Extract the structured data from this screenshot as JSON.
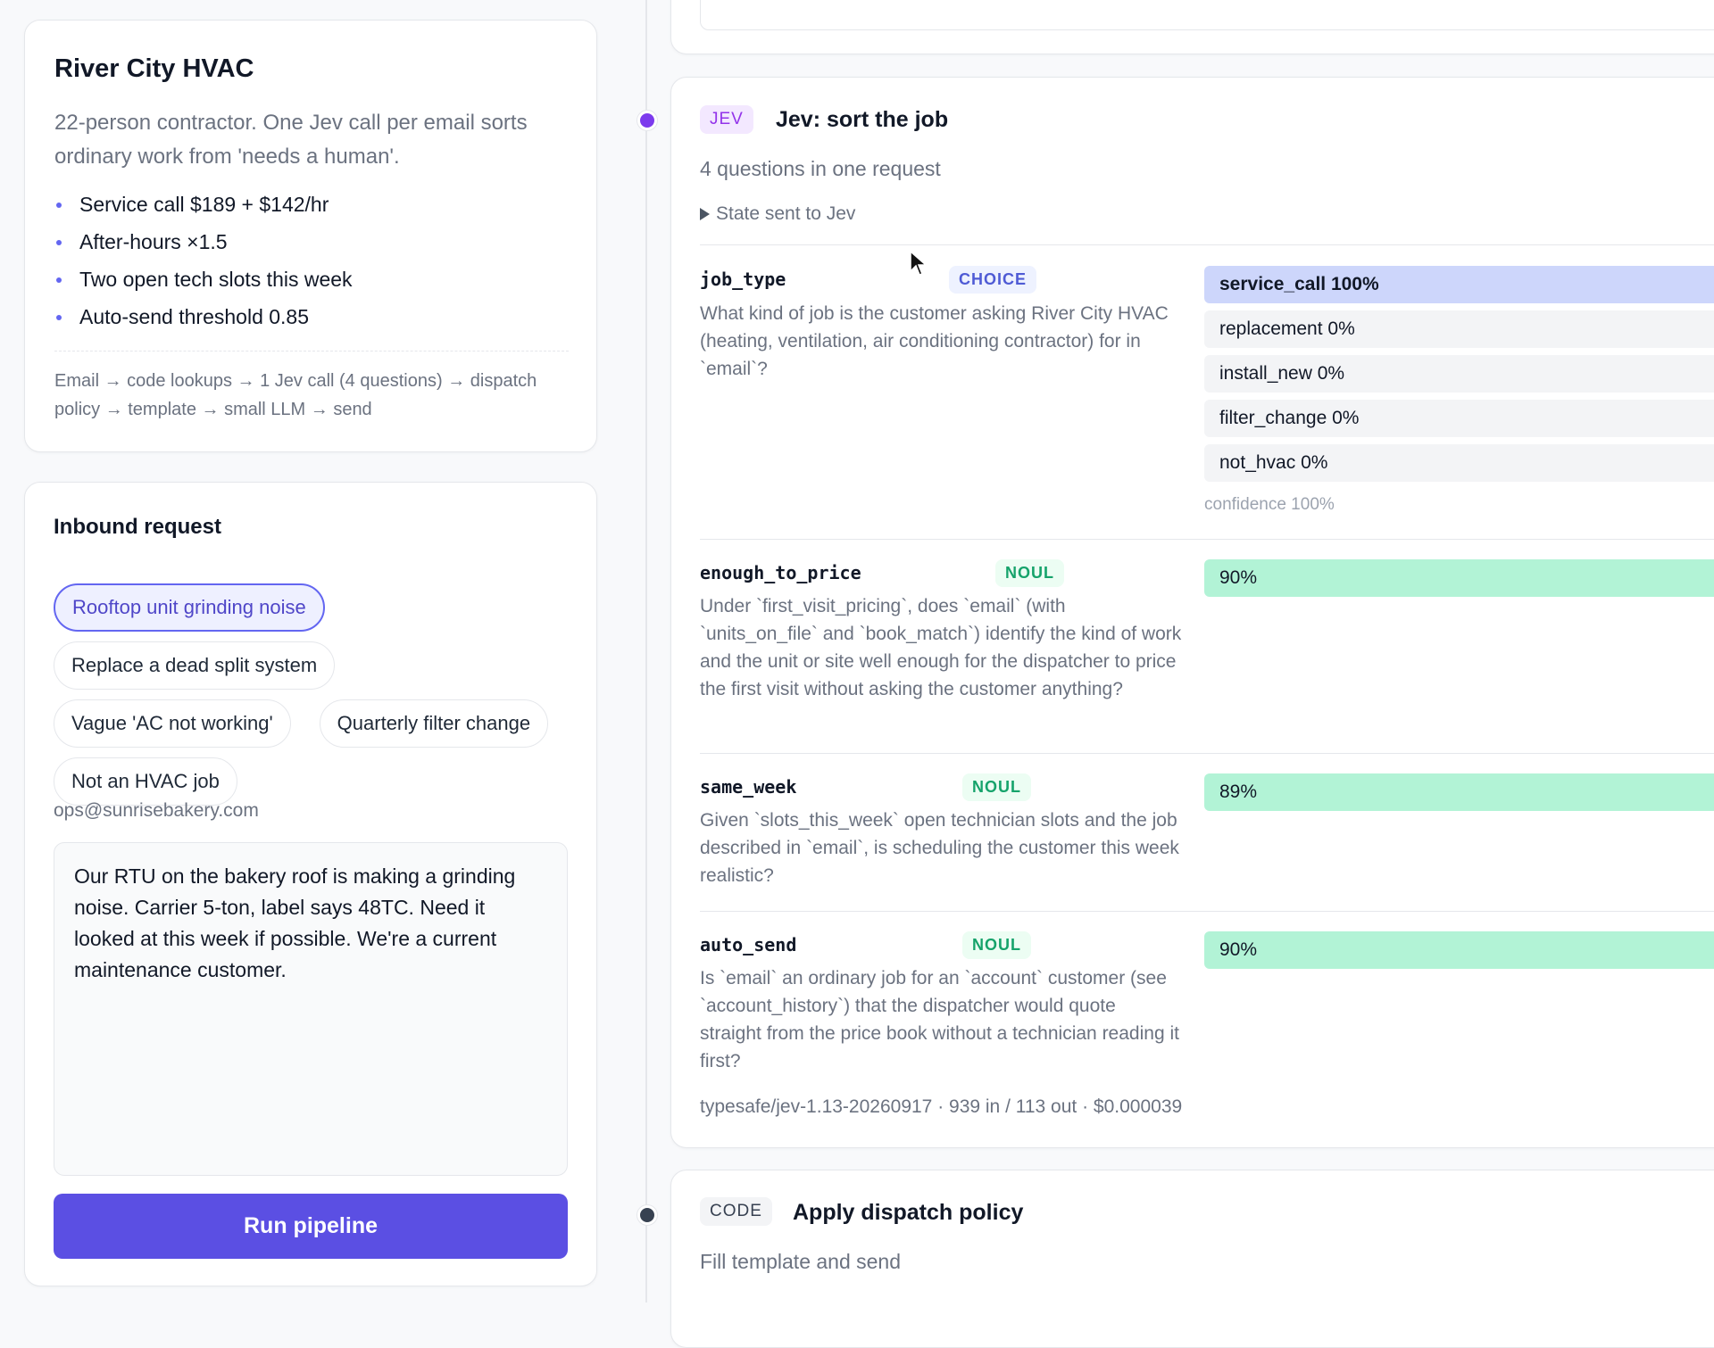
{
  "company": {
    "title": "River City HVAC",
    "description": "22-person contractor. One Jev call per email sorts ordinary work from 'needs a human'.",
    "bullets": [
      "Service call $189 + $142/hr",
      "After-hours ×1.5",
      "Two open tech slots this week",
      "Auto-send threshold 0.85"
    ],
    "flow": "Email → code lookups → 1 Jev call (4 questions) → dispatch policy → template → small LLM → send"
  },
  "inbound": {
    "title": "Inbound request",
    "examples": [
      "Rooftop unit grinding noise",
      "Replace a dead split system",
      "Vague 'AC not working'",
      "Quarterly filter change",
      "Not an HVAC job"
    ],
    "email": "ops@sunrisebakery.com",
    "body": "Our RTU on the bakery roof is making a grinding noise. Carrier 5-ton, label says 48TC. Need it looked at this week if possible. We're a current maintenance customer.",
    "button": "Run pipeline"
  },
  "steps": [
    {
      "badge": "JEV",
      "title": "Jev: sort the job",
      "subtitle": "4 questions in one request",
      "details": "State sent to Jev",
      "questions": [
        {
          "key": "job_type",
          "kind": "CHOICE",
          "text": "What kind of job is the customer asking River City HVAC (heating, ventilation, air conditioning contractor) for in `email`?",
          "options": [
            "service_call 100%",
            "replacement 0%",
            "install_new 0%",
            "filter_change 0%",
            "not_hvac 0%"
          ],
          "confidence": "confidence 100%"
        },
        {
          "key": "enough_to_price",
          "kind": "NOUL",
          "text": "Under `first_visit_pricing`, does `email` (with `units_on_file` and `book_match`) identify the kind of work and the unit or site well enough for the dispatcher to price the first visit without asking the customer anything?",
          "result": "90%"
        },
        {
          "key": "same_week",
          "kind": "NOUL",
          "text": "Given `slots_this_week` open technician slots and the job described in `email`, is scheduling the customer this week realistic?",
          "result": "89%"
        },
        {
          "key": "auto_send",
          "kind": "NOUL",
          "text": "Is `email` an ordinary job for an `account` customer (see `account_history`) that the dispatcher would quote straight from the price book without a technician reading it first?",
          "result": "90%"
        }
      ],
      "footer": "typesafe/jev-1.13-20260917 · 939 in / 113 out · $0.000039"
    },
    {
      "badge": "CODE",
      "title": "Apply dispatch policy",
      "subtitle": "Fill template and send"
    }
  ]
}
